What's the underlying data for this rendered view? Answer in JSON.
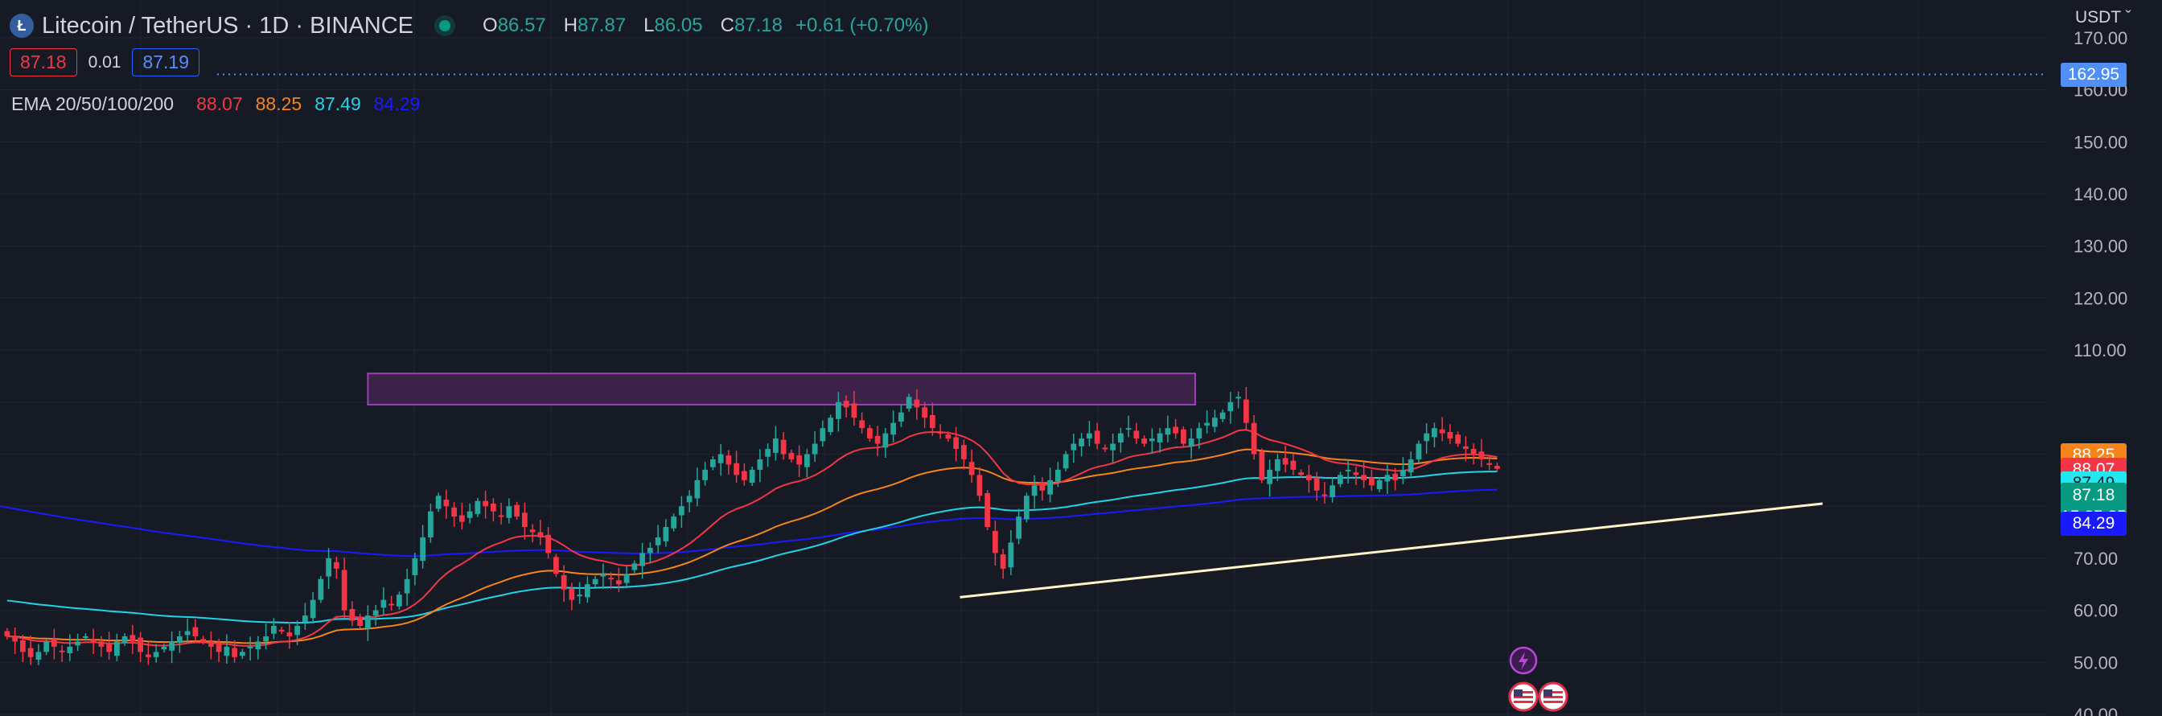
{
  "header": {
    "symbol_icon": "litecoin-logo-icon",
    "symbol_letter": "Ł",
    "title": "Litecoin / TetherUS · 1D · BINANCE",
    "ohlc": {
      "o_label": "O",
      "o": "86.57",
      "h_label": "H",
      "h": "87.87",
      "l_label": "L",
      "l": "86.05",
      "c_label": "C",
      "c": "87.18"
    },
    "change": "+0.61 (+0.70%)"
  },
  "quote": {
    "bid": "87.18",
    "spread": "0.01",
    "ask": "87.19"
  },
  "ema_legend": {
    "label": "EMA 20/50/100/200",
    "ema20": "88.07",
    "ema50": "88.25",
    "ema100": "87.49",
    "ema200": "84.29"
  },
  "axis": {
    "currency": "USDT"
  },
  "price_tags": {
    "alert": "162.95",
    "ema50": "88.25",
    "ema20": "88.07",
    "ema100": "87.49",
    "last_price": "87.18",
    "countdown": "15:25:25",
    "ema200": "84.29"
  },
  "colors": {
    "up": "#26a69a",
    "down": "#f23645",
    "ema20": "#f23645",
    "ema50": "#f7841a",
    "ema100": "#22d3e6",
    "ema200": "#1a1aff",
    "zone_fill": "#4a2456",
    "zone_stroke": "#9c3fb6",
    "trendline": "#fff3c8"
  },
  "events": [
    "lightning-icon",
    "us-flag-icon",
    "us-flag-icon"
  ],
  "chart_data": {
    "type": "candlestick",
    "title": "Litecoin / TetherUS · 1D · BINANCE",
    "xlabel": "",
    "ylabel": "",
    "y_ticks": [
      40,
      50,
      60,
      70,
      80,
      90,
      100,
      110,
      120,
      130,
      140,
      150,
      160,
      170
    ],
    "y_tick_labels": [
      "40.00",
      "50.00",
      "60.00",
      "70.00",
      "",
      "",
      "",
      "110.00",
      "120.00",
      "130.00",
      "140.00",
      "150.00",
      "160.00",
      "170.00"
    ],
    "ylim": [
      39.5,
      175
    ],
    "grid": true,
    "last_close": 87.18,
    "alert_level": 162.95,
    "resistance_zone": {
      "low": 99.5,
      "high": 105.5
    },
    "support_trendline": {
      "from_bar": 122,
      "from_price": 62.5,
      "to_bar": 232,
      "to_price": 80.5
    },
    "ema_200_start": 80,
    "ema_100_start": 62,
    "ohlc_closes": [
      55,
      54,
      52,
      51,
      52,
      54,
      53,
      52,
      53,
      54,
      55,
      54,
      53,
      52,
      54,
      55,
      54,
      52,
      51,
      52,
      53,
      54,
      55,
      56,
      55,
      54,
      53,
      52,
      53,
      51,
      52,
      53,
      54,
      55,
      57,
      56,
      55,
      57,
      59,
      62,
      66,
      70,
      68,
      60,
      58,
      57,
      59,
      60,
      62,
      61,
      63,
      66,
      70,
      74,
      79,
      82,
      80,
      78,
      77,
      79,
      81,
      80,
      79,
      78,
      80,
      78,
      76,
      75,
      74,
      71,
      67,
      64,
      62,
      63,
      65,
      66,
      67,
      66,
      65,
      67,
      69,
      71,
      72,
      74,
      76,
      78,
      80,
      82,
      85,
      87,
      89,
      90,
      88,
      86,
      85,
      87,
      89,
      91,
      93,
      90,
      89,
      88,
      90,
      92,
      95,
      97,
      100,
      99,
      97,
      95,
      93,
      92,
      94,
      96,
      98,
      101,
      99,
      97,
      95,
      94,
      93,
      91,
      89,
      86,
      82,
      76,
      71,
      68,
      73,
      78,
      82,
      84,
      83,
      85,
      87,
      90,
      92,
      93,
      94,
      92,
      91,
      92,
      94,
      95,
      93,
      92,
      93,
      94,
      95,
      94,
      92,
      93,
      95,
      96,
      97,
      98,
      100,
      101,
      96,
      90,
      85,
      87,
      89,
      88,
      87,
      86,
      85,
      83,
      82,
      84,
      86,
      87,
      86,
      85,
      84,
      85,
      86,
      85,
      87,
      89,
      92,
      94,
      95,
      94,
      93,
      92,
      91,
      90,
      89,
      88,
      87.18
    ]
  }
}
